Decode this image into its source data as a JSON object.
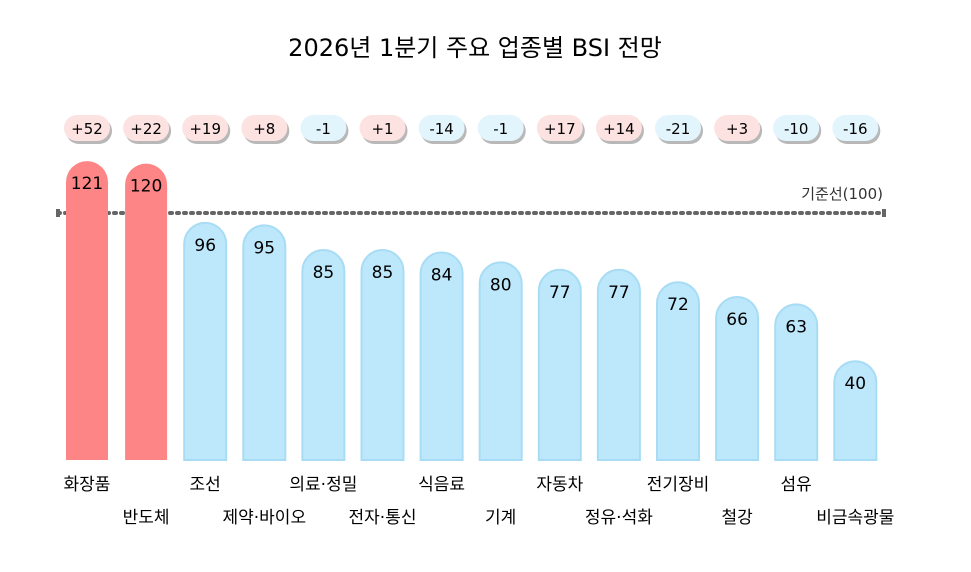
{
  "chart_data": {
    "type": "bar",
    "title": "2026년 1분기 주요 업종별 BSI 전망",
    "categories": [
      "화장품",
      "반도체",
      "조선",
      "제약·바이오",
      "의료·정밀",
      "전자·통신",
      "식음료",
      "기계",
      "자동차",
      "정유·석화",
      "전기장비",
      "철강",
      "섬유",
      "비금속광물"
    ],
    "values": [
      121,
      120,
      96,
      95,
      85,
      85,
      84,
      80,
      77,
      77,
      72,
      66,
      63,
      40
    ],
    "changes": [
      "+52",
      "+22",
      "+19",
      "+8",
      "-1",
      "+1",
      "-14",
      "-1",
      "+17",
      "+14",
      "-21",
      "+3",
      "-10",
      "-16"
    ],
    "reference_line": {
      "value": 100,
      "label": "기준선(100)"
    },
    "xlabel": "",
    "ylabel": "",
    "colors": {
      "above_baseline": "#fd8585",
      "below_baseline": "#bde8fb",
      "bar_border_below": "#a8dcf5",
      "badge_positive_fill": "#fde2e2",
      "badge_negative_fill": "#e2f4fc",
      "badge_shadow": "#b8b8b8",
      "reference_line": "#666666",
      "text": "#000000"
    }
  }
}
